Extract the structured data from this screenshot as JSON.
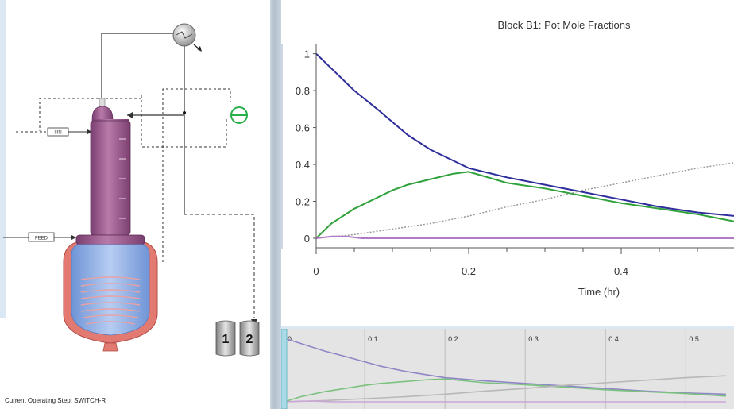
{
  "flowsheet": {
    "feed_label": "FEED",
    "stream_label": "IIIN",
    "receiver_labels": [
      "1",
      "2"
    ],
    "status_text": "Current Operating Step: SWITCH-R"
  },
  "colors": {
    "series_1": "#2e2e9c",
    "series_2": "#2fa13a",
    "series_3": "#9a9a9a",
    "series_4": "#b07bc4",
    "column": "#9b5e8e",
    "pot_liquid": "#8fb0e8",
    "jacket": "#e27a72"
  },
  "chart_data": {
    "type": "line",
    "title": "Block B1: Pot Mole Fractions",
    "xlabel": "Time (hr)",
    "ylabel": "",
    "xlim": [
      0,
      0.55
    ],
    "ylim": [
      0,
      1.05
    ],
    "x_ticks": [
      "0",
      "0.2",
      "0.4"
    ],
    "y_ticks": [
      "0",
      "0.2",
      "0.4",
      "0.6",
      "0.8",
      "1"
    ],
    "grid": false,
    "series": [
      {
        "style": "solid",
        "color": "#2e2e9c",
        "x": [
          0,
          0.02,
          0.05,
          0.08,
          0.1,
          0.12,
          0.15,
          0.18,
          0.2,
          0.25,
          0.3,
          0.35,
          0.4,
          0.45,
          0.5,
          0.55
        ],
        "y": [
          1.0,
          0.92,
          0.8,
          0.7,
          0.63,
          0.56,
          0.48,
          0.42,
          0.38,
          0.33,
          0.29,
          0.25,
          0.21,
          0.17,
          0.14,
          0.12
        ]
      },
      {
        "style": "solid",
        "color": "#2fa13a",
        "x": [
          0,
          0.02,
          0.05,
          0.08,
          0.1,
          0.12,
          0.15,
          0.18,
          0.2,
          0.25,
          0.3,
          0.35,
          0.4,
          0.45,
          0.5,
          0.55
        ],
        "y": [
          0.0,
          0.08,
          0.16,
          0.22,
          0.26,
          0.29,
          0.32,
          0.35,
          0.36,
          0.3,
          0.27,
          0.23,
          0.19,
          0.16,
          0.13,
          0.09
        ]
      },
      {
        "style": "dotted",
        "color": "#9a9a9a",
        "x": [
          0,
          0.05,
          0.1,
          0.15,
          0.2,
          0.25,
          0.3,
          0.35,
          0.4,
          0.45,
          0.5,
          0.55
        ],
        "y": [
          0.0,
          0.02,
          0.05,
          0.08,
          0.12,
          0.17,
          0.21,
          0.26,
          0.3,
          0.34,
          0.38,
          0.41
        ]
      },
      {
        "style": "solid",
        "color": "#b07bc4",
        "x": [
          0,
          0.02,
          0.04,
          0.06,
          0.55
        ],
        "y": [
          0.0,
          0.01,
          0.01,
          0.0,
          0.0
        ]
      }
    ]
  },
  "overview": {
    "tick_labels": [
      "0",
      "0.1",
      "0.2",
      "0.3",
      "0.4",
      "0.5"
    ],
    "xlim": [
      0,
      0.56
    ]
  }
}
